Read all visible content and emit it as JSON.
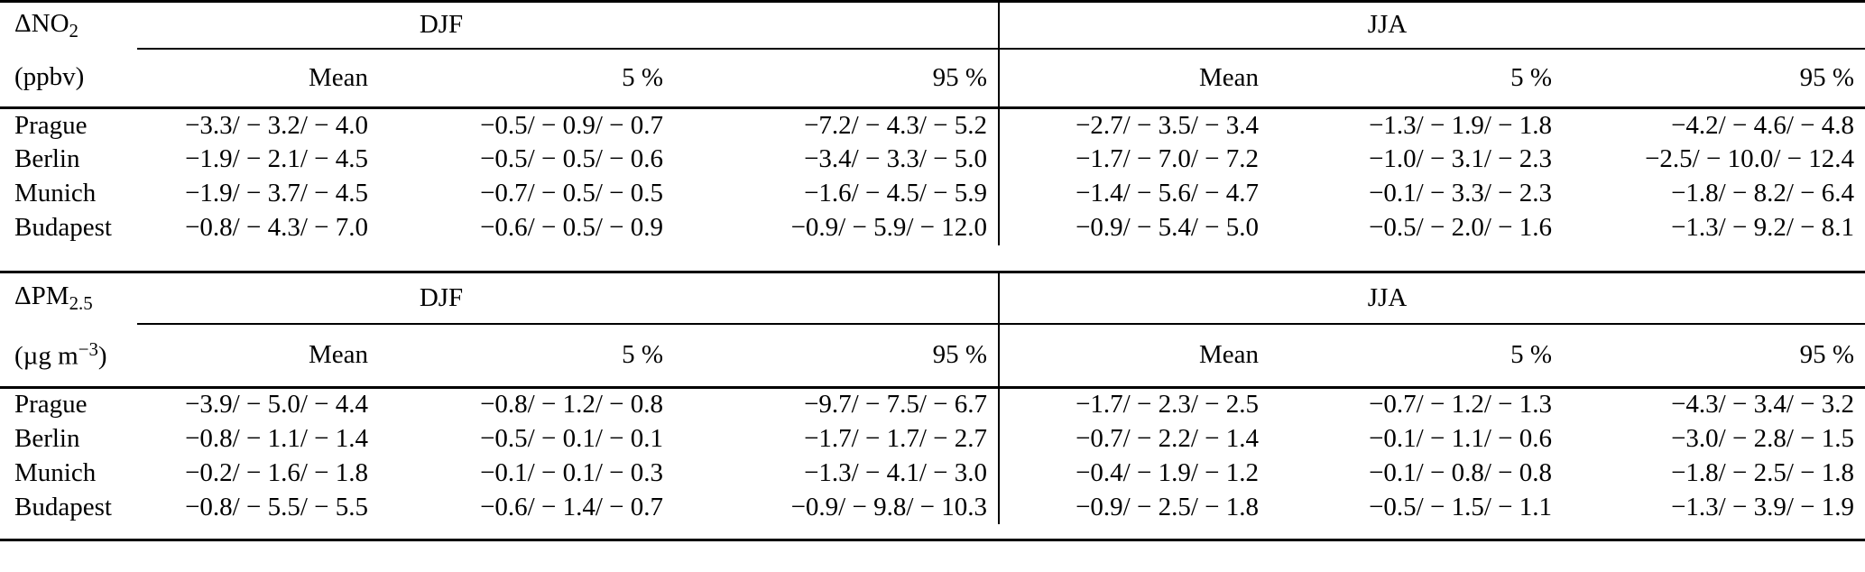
{
  "tables": [
    {
      "label": {
        "prefix": "ΔNO",
        "sub": "2"
      },
      "unit": {
        "prefix": "(ppbv)"
      },
      "seasons": [
        "DJF",
        "JJA"
      ],
      "stats": [
        "Mean",
        "5 %",
        "95 %"
      ],
      "rows": [
        {
          "city": "Prague",
          "values": [
            "−3.3/ − 3.2/ − 4.0",
            "−0.5/ − 0.9/ − 0.7",
            "−7.2/ − 4.3/ − 5.2",
            "−2.7/ − 3.5/ − 3.4",
            "−1.3/ − 1.9/ − 1.8",
            "−4.2/ − 4.6/ − 4.8"
          ]
        },
        {
          "city": "Berlin",
          "values": [
            "−1.9/ − 2.1/ − 4.5",
            "−0.5/ − 0.5/ − 0.6",
            "−3.4/ − 3.3/ − 5.0",
            "−1.7/ − 7.0/ − 7.2",
            "−1.0/ − 3.1/ − 2.3",
            "−2.5/ − 10.0/ − 12.4"
          ]
        },
        {
          "city": "Munich",
          "values": [
            "−1.9/ − 3.7/ − 4.5",
            "−0.7/ − 0.5/ − 0.5",
            "−1.6/ − 4.5/ − 5.9",
            "−1.4/ − 5.6/ − 4.7",
            "−0.1/ − 3.3/ − 2.3",
            "−1.8/ − 8.2/ − 6.4"
          ]
        },
        {
          "city": "Budapest",
          "values": [
            "−0.8/ − 4.3/ − 7.0",
            "−0.6/ − 0.5/ − 0.9",
            "−0.9/ − 5.9/ − 12.0",
            "−0.9/ − 5.4/ − 5.0",
            "−0.5/ − 2.0/ − 1.6",
            "−1.3/ − 9.2/ − 8.1"
          ]
        }
      ]
    },
    {
      "label": {
        "prefix": "ΔPM",
        "sub": "2.5"
      },
      "unit": {
        "prefix": "(µg m",
        "sup": "−3",
        "suffix": ")"
      },
      "seasons": [
        "DJF",
        "JJA"
      ],
      "stats": [
        "Mean",
        "5 %",
        "95 %"
      ],
      "rows": [
        {
          "city": "Prague",
          "values": [
            "−3.9/ − 5.0/ − 4.4",
            "−0.8/ − 1.2/ − 0.8",
            "−9.7/ − 7.5/ − 6.7",
            "−1.7/ − 2.3/ − 2.5",
            "−0.7/ − 1.2/ − 1.3",
            "−4.3/ − 3.4/ − 3.2"
          ]
        },
        {
          "city": "Berlin",
          "values": [
            "−0.8/ − 1.1/ − 1.4",
            "−0.5/ − 0.1/ − 0.1",
            "−1.7/ − 1.7/ − 2.7",
            "−0.7/ − 2.2/ − 1.4",
            "−0.1/ − 1.1/ − 0.6",
            "−3.0/ − 2.8/ − 1.5"
          ]
        },
        {
          "city": "Munich",
          "values": [
            "−0.2/ − 1.6/ − 1.8",
            "−0.1/ − 0.1/ − 0.3",
            "−1.3/ − 4.1/ − 3.0",
            "−0.4/ − 1.9/ − 1.2",
            "−0.1/ − 0.8/ − 0.8",
            "−1.8/ − 2.5/ − 1.8"
          ]
        },
        {
          "city": "Budapest",
          "values": [
            "−0.8/ − 5.5/ − 5.5",
            "−0.6/ − 1.4/ − 0.7",
            "−0.9/ − 9.8/ − 10.3",
            "−0.9/ − 2.5/ − 1.8",
            "−0.5/ − 1.5/ − 1.1",
            "−1.3/ − 3.9/ − 1.9"
          ]
        }
      ]
    }
  ]
}
